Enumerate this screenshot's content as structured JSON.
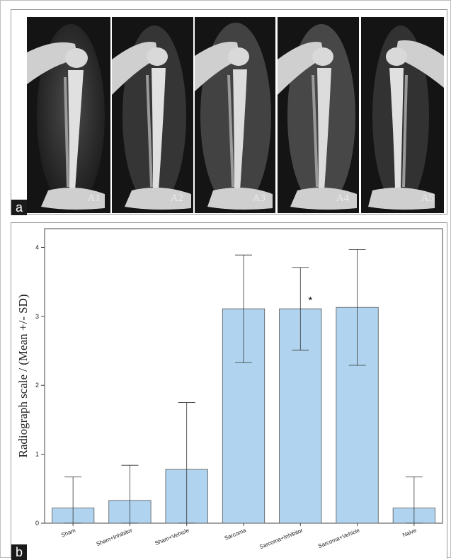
{
  "panel_a": {
    "letter": "a",
    "images": [
      {
        "label": "A1"
      },
      {
        "label": "A2"
      },
      {
        "label": "A3"
      },
      {
        "label": "A4"
      },
      {
        "label": "A5"
      }
    ]
  },
  "panel_b": {
    "letter": "b"
  },
  "chart_data": {
    "type": "bar",
    "title": "",
    "xlabel": "",
    "ylabel": "Radiograph scale / (Mean +/- SD)",
    "ylim": [
      0,
      4.2
    ],
    "yticks": [
      0,
      1,
      2,
      3,
      4
    ],
    "categories": [
      "Sham",
      "Sham+Inhibitor",
      "Sham+Vehicle",
      "Sarcoma",
      "Sarcoma+Inhibitor",
      "Sarcoma+Vehicle",
      "Naive"
    ],
    "values": [
      0.22,
      0.33,
      0.78,
      3.11,
      3.11,
      3.13,
      0.22
    ],
    "error": [
      0.45,
      0.51,
      0.97,
      0.78,
      0.6,
      0.84,
      0.45
    ],
    "annotations": [
      {
        "category": "Sarcoma+Inhibitor",
        "text": "*"
      }
    ],
    "bar_color": "#b0d4ef",
    "grid": false,
    "legend": "none"
  }
}
